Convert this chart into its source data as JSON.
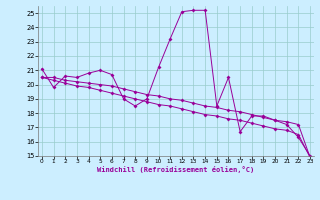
{
  "xlabel": "Windchill (Refroidissement éolien,°C)",
  "bg_color": "#cceeff",
  "line_color": "#990099",
  "grid_color": "#99cccc",
  "x_values": [
    0,
    1,
    2,
    3,
    4,
    5,
    6,
    7,
    8,
    9,
    10,
    11,
    12,
    13,
    14,
    15,
    16,
    17,
    18,
    19,
    20,
    21,
    22,
    23
  ],
  "series1": [
    21.1,
    19.8,
    20.6,
    20.5,
    20.8,
    21.0,
    20.7,
    19.0,
    18.5,
    19.0,
    21.2,
    23.2,
    25.1,
    25.2,
    25.2,
    18.5,
    20.5,
    16.7,
    17.8,
    17.8,
    17.5,
    17.2,
    16.3,
    15.0
  ],
  "series2": [
    20.5,
    20.5,
    20.3,
    20.2,
    20.1,
    20.0,
    19.9,
    19.7,
    19.5,
    19.3,
    19.2,
    19.0,
    18.9,
    18.7,
    18.5,
    18.4,
    18.2,
    18.1,
    17.9,
    17.7,
    17.5,
    17.4,
    17.2,
    14.9
  ],
  "series3": [
    20.5,
    20.3,
    20.1,
    19.9,
    19.8,
    19.6,
    19.4,
    19.2,
    19.0,
    18.8,
    18.6,
    18.5,
    18.3,
    18.1,
    17.9,
    17.8,
    17.6,
    17.5,
    17.3,
    17.1,
    16.9,
    16.8,
    16.5,
    14.9
  ],
  "xlim": [
    0,
    23
  ],
  "ylim": [
    15,
    25.5
  ],
  "yticks": [
    15,
    16,
    17,
    18,
    19,
    20,
    21,
    22,
    23,
    24,
    25
  ],
  "xticks": [
    0,
    1,
    2,
    3,
    4,
    5,
    6,
    7,
    8,
    9,
    10,
    11,
    12,
    13,
    14,
    15,
    16,
    17,
    18,
    19,
    20,
    21,
    22,
    23
  ]
}
